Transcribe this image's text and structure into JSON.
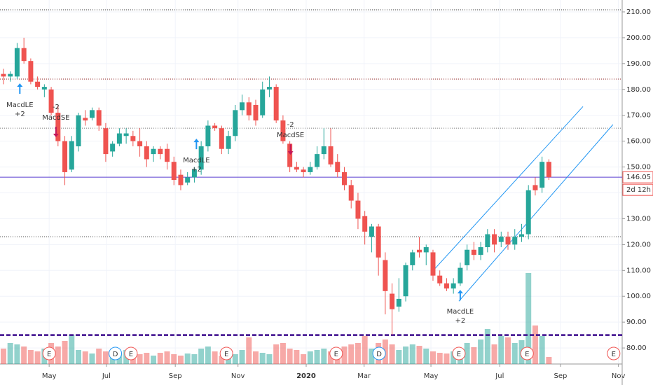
{
  "chart_data": {
    "type": "candlestick",
    "x": [
      0,
      1,
      2,
      3,
      4,
      5,
      6,
      7,
      8,
      9,
      10,
      11,
      12,
      13,
      14,
      15,
      16,
      17,
      18,
      19,
      20,
      21,
      22,
      23,
      24,
      25,
      26,
      27,
      28,
      29,
      30,
      31,
      32,
      33,
      34,
      35,
      36,
      37,
      38,
      39,
      40,
      41,
      42,
      43,
      44,
      45,
      46,
      47,
      48,
      49,
      50,
      51,
      52,
      53,
      54,
      55,
      56,
      57,
      58,
      59,
      60,
      61,
      62,
      63,
      64,
      65,
      66,
      67,
      68,
      69,
      70,
      71,
      72,
      73,
      74,
      75,
      76,
      77,
      78,
      79,
      80
    ],
    "ohlc": [
      [
        186,
        188,
        182,
        185
      ],
      [
        185,
        187,
        183,
        186
      ],
      [
        185,
        198,
        184,
        196
      ],
      [
        196,
        200,
        190,
        191
      ],
      [
        191,
        192,
        182,
        183
      ],
      [
        183,
        185,
        180,
        181
      ],
      [
        180,
        182,
        177,
        181
      ],
      [
        180,
        181,
        170,
        171
      ],
      [
        171,
        174,
        158,
        160
      ],
      [
        160,
        162,
        143,
        148
      ],
      [
        149,
        162,
        148,
        160
      ],
      [
        158,
        171,
        156,
        170
      ],
      [
        169,
        172,
        166,
        168
      ],
      [
        169,
        173,
        168,
        172
      ],
      [
        172,
        173,
        164,
        166
      ],
      [
        165,
        167,
        152,
        155
      ],
      [
        156,
        160,
        154,
        159
      ],
      [
        159,
        165,
        158,
        163
      ],
      [
        162,
        165,
        159,
        163
      ],
      [
        162,
        164,
        158,
        160
      ],
      [
        160,
        165,
        154,
        158
      ],
      [
        158,
        160,
        150,
        153
      ],
      [
        155,
        158,
        152,
        157
      ],
      [
        157,
        158,
        153,
        155
      ],
      [
        157,
        159,
        149,
        152
      ],
      [
        152,
        154,
        143,
        145
      ],
      [
        147,
        149,
        141,
        143
      ],
      [
        144,
        148,
        143,
        146
      ],
      [
        146,
        150,
        144,
        149
      ],
      [
        149,
        160,
        147,
        158
      ],
      [
        158,
        168,
        156,
        166
      ],
      [
        166,
        167,
        164,
        165
      ],
      [
        165,
        166,
        155,
        157
      ],
      [
        157,
        164,
        155,
        162
      ],
      [
        162,
        174,
        160,
        172
      ],
      [
        172,
        178,
        170,
        175
      ],
      [
        175,
        177,
        168,
        170
      ],
      [
        174,
        176,
        166,
        168
      ],
      [
        170,
        183,
        169,
        180
      ],
      [
        180,
        185,
        177,
        181
      ],
      [
        181,
        182,
        167,
        168
      ],
      [
        168,
        170,
        159,
        160
      ],
      [
        159,
        160,
        148,
        150
      ],
      [
        150,
        152,
        148,
        149
      ],
      [
        149,
        150,
        146,
        148
      ],
      [
        148,
        152,
        147,
        150
      ],
      [
        150,
        158,
        149,
        155
      ],
      [
        155,
        165,
        153,
        158
      ],
      [
        158,
        165,
        150,
        151
      ],
      [
        152,
        155,
        146,
        148
      ],
      [
        148,
        150,
        141,
        143
      ],
      [
        143,
        145,
        134,
        137
      ],
      [
        137,
        140,
        126,
        130
      ],
      [
        131,
        133,
        120,
        125
      ],
      [
        123,
        128,
        117,
        127
      ],
      [
        127,
        128,
        108,
        115
      ],
      [
        114,
        117,
        93,
        102
      ],
      [
        101,
        105,
        85,
        95
      ],
      [
        96,
        107,
        94,
        99
      ],
      [
        100,
        113,
        98,
        112
      ],
      [
        112,
        118,
        110,
        117
      ],
      [
        118,
        123,
        115,
        117
      ],
      [
        117,
        120,
        112,
        119
      ],
      [
        117,
        118,
        106,
        108
      ],
      [
        108,
        110,
        104,
        105
      ],
      [
        105,
        107,
        102,
        103
      ],
      [
        103,
        107,
        101,
        105
      ],
      [
        105,
        113,
        104,
        111
      ],
      [
        112,
        120,
        110,
        118
      ],
      [
        118,
        121,
        114,
        116
      ],
      [
        116,
        121,
        114,
        119
      ],
      [
        119,
        126,
        117,
        124
      ],
      [
        124,
        126,
        117,
        120
      ],
      [
        121,
        125,
        119,
        123
      ],
      [
        123,
        125,
        118,
        120
      ],
      [
        120,
        126,
        118,
        123
      ],
      [
        123,
        128,
        121,
        124
      ],
      [
        124,
        143,
        122,
        141
      ],
      [
        143,
        146,
        139,
        141
      ],
      [
        142,
        154,
        140,
        152
      ],
      [
        152,
        153,
        145,
        146.05
      ]
    ],
    "volume": [
      22,
      30,
      28,
      25,
      20,
      18,
      22,
      30,
      25,
      33,
      42,
      20,
      18,
      15,
      22,
      18,
      16,
      15,
      20,
      18,
      14,
      16,
      12,
      16,
      18,
      14,
      12,
      15,
      14,
      22,
      25,
      18,
      12,
      15,
      14,
      20,
      38,
      18,
      16,
      14,
      28,
      30,
      22,
      20,
      14,
      18,
      20,
      22,
      18,
      20,
      25,
      28,
      30,
      40,
      22,
      30,
      35,
      28,
      20,
      25,
      28,
      26,
      22,
      18,
      16,
      15,
      18,
      22,
      30,
      24,
      35,
      50,
      28,
      40,
      38,
      30,
      34,
      130,
      55,
      40,
      10
    ],
    "up_color": "#26a69a",
    "down_color": "#ef5350",
    "xlim": [
      -0.51,
      90.75
    ],
    "ylim": [
      73.8,
      214.6
    ],
    "xticks": [
      {
        "value": 6.7,
        "label": "May"
      },
      {
        "value": 15.1,
        "label": "Jul"
      },
      {
        "value": 25.2,
        "label": "Sep"
      },
      {
        "value": 34.4,
        "label": "Nov"
      },
      {
        "value": 44.4,
        "label": "2020"
      },
      {
        "value": 52.9,
        "label": "Mar"
      },
      {
        "value": 62.7,
        "label": "May"
      },
      {
        "value": 72.8,
        "label": "Jul"
      },
      {
        "value": 81.7,
        "label": "Sep"
      },
      {
        "value": 90.2,
        "label": "Nov"
      }
    ],
    "yticks": [
      {
        "value": 80,
        "label": "80.00"
      },
      {
        "value": 90,
        "label": "90.00"
      },
      {
        "value": 100,
        "label": "100.00"
      },
      {
        "value": 110,
        "label": "110.00"
      },
      {
        "value": 120,
        "label": "120.00"
      },
      {
        "value": 130,
        "label": "130.00"
      },
      {
        "value": 140,
        "label": "140.00"
      },
      {
        "value": 150,
        "label": "150.00"
      },
      {
        "value": 160,
        "label": "160.00"
      },
      {
        "value": 170,
        "label": "170.00"
      },
      {
        "value": 180,
        "label": "180.00"
      },
      {
        "value": 190,
        "label": "190.00"
      },
      {
        "value": 200,
        "label": "200.00"
      },
      {
        "value": 210,
        "label": "210.00"
      }
    ],
    "grid": true,
    "levels": [
      {
        "value": 210.8,
        "color": "#333333",
        "style": "dotted"
      },
      {
        "value": 184,
        "color": "#8b1a1a",
        "style": "dotted"
      },
      {
        "value": 165,
        "color": "#777777",
        "style": "dotted"
      },
      {
        "value": 123,
        "color": "#333333",
        "style": "dotted"
      },
      {
        "value": 85,
        "color": "#3b0a8c",
        "style": "dashed"
      }
    ],
    "last_price_color": "#5b3fd1",
    "countdown": "2d 12h",
    "channel": [
      {
        "x": [
          62.7,
          85.0
        ],
        "y": [
          109,
          173.4
        ]
      },
      {
        "x": [
          66.8,
          89.4
        ],
        "y": [
          98.1,
          166.4
        ]
      }
    ],
    "channel_color": "#2196f3",
    "signals": [
      {
        "label": "MacdLE",
        "qty": "+2",
        "x": 2.4,
        "price": 180.2,
        "dir": "up"
      },
      {
        "label": "MacdSE",
        "qty": "-2",
        "x": 7.7,
        "price": 163.7,
        "dir": "down"
      },
      {
        "label": "MacdLE",
        "qty": "+2",
        "x": 28.3,
        "price": 158.8,
        "dir": "up"
      },
      {
        "label": "MacdSE",
        "qty": "-2",
        "x": 42.1,
        "price": 156.9,
        "dir": "down"
      },
      {
        "label": "MacdLE",
        "qty": "+2",
        "x": 67.0,
        "price": 100.3,
        "dir": "up"
      }
    ],
    "events": [
      {
        "label": "E",
        "x": 6.7
      },
      {
        "label": "D",
        "x": 16.4
      },
      {
        "label": "E",
        "x": 18.7
      },
      {
        "label": "E",
        "x": 32.7
      },
      {
        "label": "E",
        "x": 48.8
      },
      {
        "label": "D",
        "x": 55.1
      },
      {
        "label": "E",
        "x": 66.8
      },
      {
        "label": "E",
        "x": 76.8
      },
      {
        "label": "E",
        "x": 89.5
      }
    ]
  }
}
